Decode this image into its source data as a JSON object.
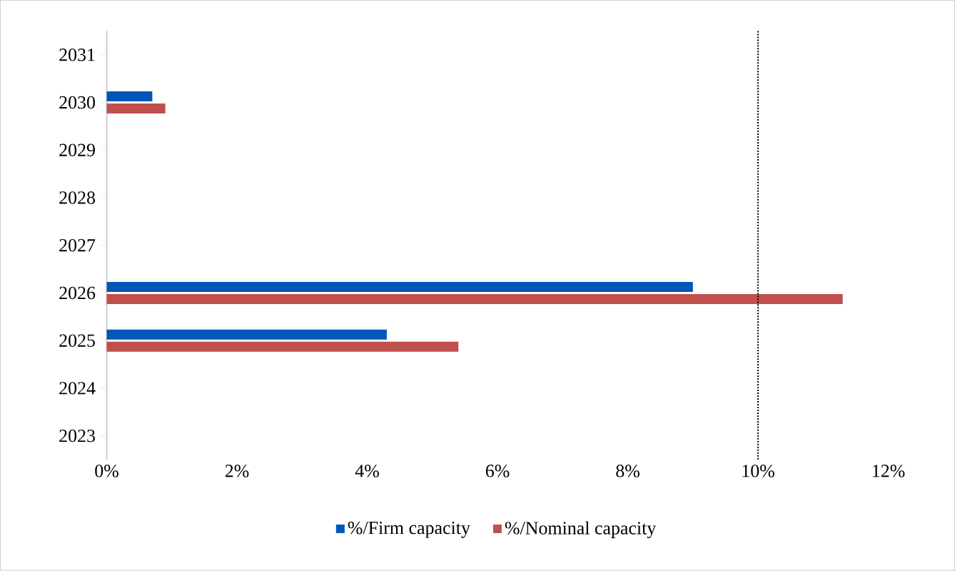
{
  "chart_data": {
    "type": "bar",
    "orientation": "horizontal",
    "categories": [
      "2031",
      "2030",
      "2029",
      "2028",
      "2027",
      "2026",
      "2025",
      "2024",
      "2023"
    ],
    "series": [
      {
        "name": "%/Firm capacity",
        "color": "#0057b8",
        "values": [
          null,
          0.7,
          null,
          null,
          null,
          9.0,
          4.3,
          null,
          null
        ]
      },
      {
        "name": "%/Nominal capacity",
        "color": "#c0504d",
        "values": [
          null,
          0.9,
          null,
          null,
          null,
          11.3,
          5.4,
          null,
          null
        ]
      }
    ],
    "xlim": [
      0,
      12
    ],
    "xticks": [
      {
        "value": 0,
        "label": "0%"
      },
      {
        "value": 2,
        "label": "2%"
      },
      {
        "value": 4,
        "label": "4%"
      },
      {
        "value": 6,
        "label": "6%"
      },
      {
        "value": 8,
        "label": "8%"
      },
      {
        "value": 10,
        "label": "10%"
      },
      {
        "value": 12,
        "label": "12%"
      }
    ],
    "ref_lines": [
      {
        "axis": "x",
        "value": 10,
        "color": "#000000",
        "line_style": "dotted"
      }
    ],
    "grid": false,
    "legend": "bottom"
  }
}
